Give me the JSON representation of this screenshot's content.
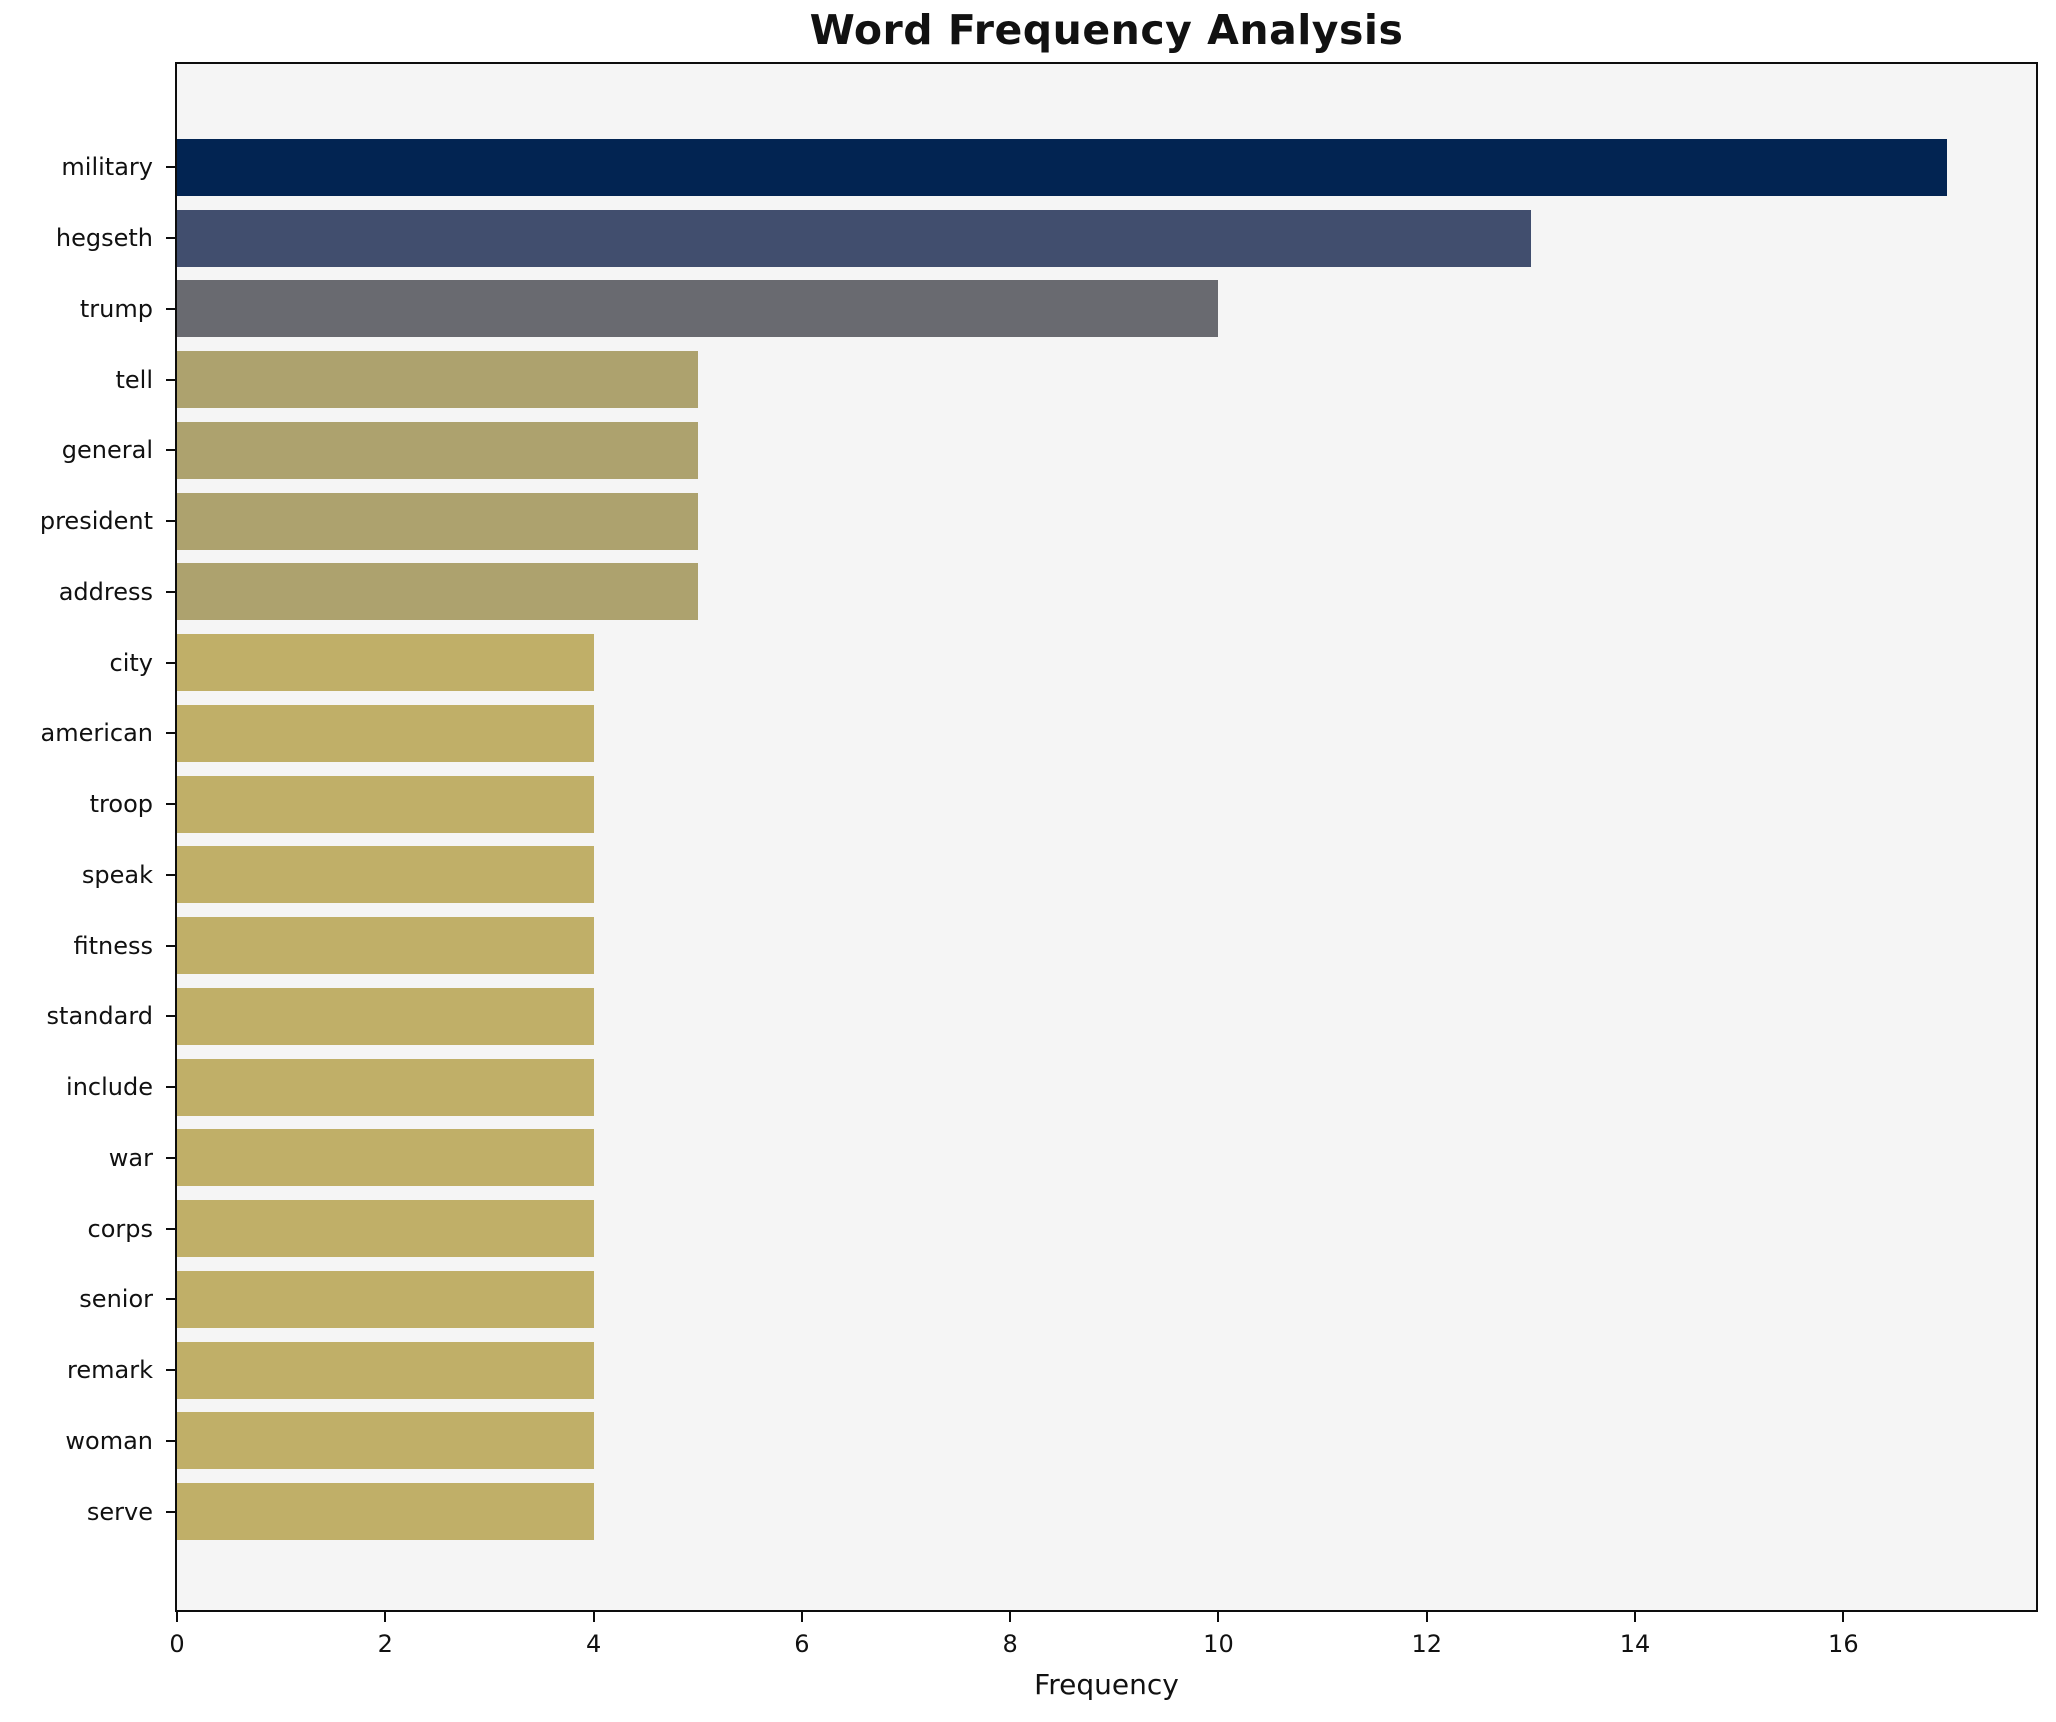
{
  "chart_data": {
    "type": "bar",
    "orientation": "horizontal",
    "title": "Word Frequency Analysis",
    "xlabel": "Frequency",
    "ylabel": "",
    "categories": [
      "military",
      "hegseth",
      "trump",
      "tell",
      "general",
      "president",
      "address",
      "city",
      "american",
      "troop",
      "speak",
      "fitness",
      "standard",
      "include",
      "war",
      "corps",
      "senior",
      "remark",
      "woman",
      "serve"
    ],
    "values": [
      17,
      13,
      10,
      5,
      5,
      5,
      5,
      4,
      4,
      4,
      4,
      4,
      4,
      4,
      4,
      4,
      4,
      4,
      4,
      4
    ],
    "bar_colors": [
      "#022452",
      "#414e6e",
      "#696a70",
      "#ada26e",
      "#ada26e",
      "#ada26e",
      "#ada26e",
      "#c0af68",
      "#c0af68",
      "#c0af68",
      "#c0af68",
      "#c0af68",
      "#c0af68",
      "#c0af68",
      "#c0af68",
      "#c0af68",
      "#c0af68",
      "#c0af68",
      "#c0af68",
      "#c0af68"
    ],
    "xlim": [
      0,
      17.85
    ],
    "x_ticks": [
      0,
      2,
      4,
      6,
      8,
      10,
      12,
      14,
      16
    ],
    "grid": false,
    "legend": "none",
    "plot_background": "#f5f5f5",
    "figure_background": "#ffffff",
    "spine_color": "#0d0d0d",
    "text_color": "#111111"
  }
}
